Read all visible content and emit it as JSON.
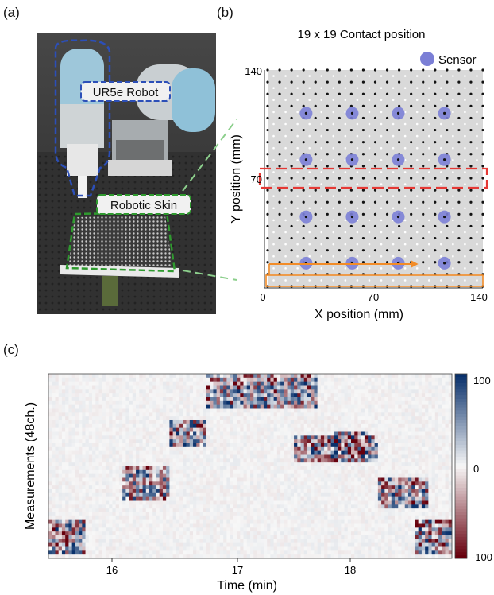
{
  "labels": {
    "a": "(a)",
    "b": "(b)",
    "c": "(c)"
  },
  "photo": {
    "robot_label": "UR5e Robot",
    "skin_label": "Robotic Skin",
    "robot_outline_color": "#2c4fb8",
    "skin_outline_color": "#2f9a2f"
  },
  "grid_panel": {
    "title": "19 x 19 Contact position",
    "legend": "Sensor",
    "xlabel": "X position (mm)",
    "ylabel": "Y position (mm)",
    "x_ticks": [
      "0",
      "70",
      "140"
    ],
    "y_ticks": [
      "140",
      "70"
    ]
  },
  "heatmap_panel": {
    "xlabel": "Time (min)",
    "ylabel": "Measurements (48ch.)",
    "x_ticks": [
      "16",
      "17",
      "18"
    ],
    "colorbar_ticks": [
      "100",
      "0",
      "-100"
    ]
  },
  "chart_data": [
    {
      "type": "scatter",
      "title": "19 x 19 Contact position",
      "xlabel": "X position (mm)",
      "ylabel": "Y position (mm)",
      "xlim": [
        0,
        140
      ],
      "ylim": [
        0,
        140
      ],
      "grid_points": 19,
      "series": [
        {
          "name": "Sensor",
          "x": [
            25,
            55,
            85,
            115,
            25,
            55,
            85,
            115,
            25,
            55,
            85,
            115,
            25,
            55,
            85,
            115
          ],
          "y": [
            112,
            112,
            112,
            112,
            82,
            82,
            82,
            82,
            45,
            45,
            45,
            45,
            15,
            15,
            15,
            15
          ],
          "color": "#7b7fd6"
        }
      ],
      "highlight_row_y": 70,
      "path_row_y": 0,
      "highlight_color": "#e53935",
      "path_color": "#f28c28"
    },
    {
      "type": "heatmap",
      "xlabel": "Time (min)",
      "ylabel": "Measurements (48ch.)",
      "xlim": [
        15.5,
        18.8
      ],
      "channels": 48,
      "colorbar_range": [
        -100,
        100
      ],
      "colors": {
        "positive": "#08306b",
        "zero": "#f7f7f7",
        "negative": "#67000d"
      }
    }
  ]
}
